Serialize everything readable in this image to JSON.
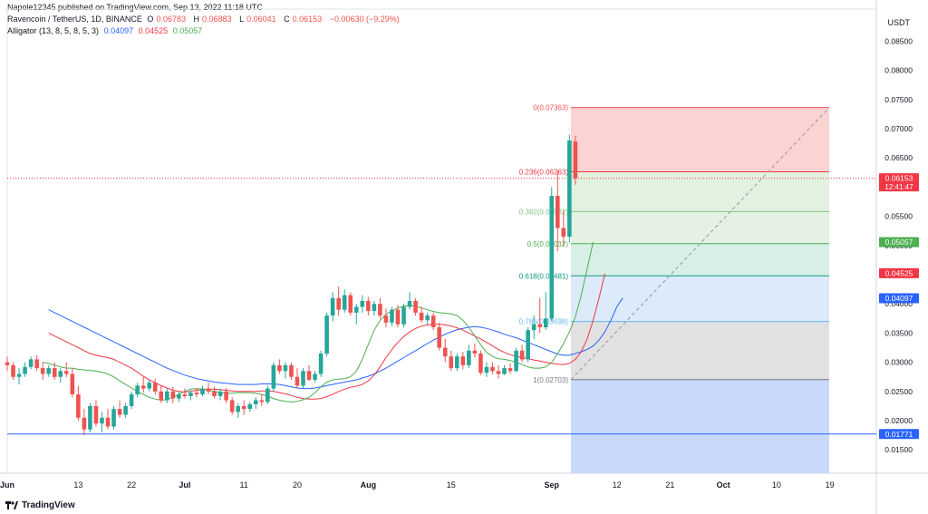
{
  "header": {
    "publisher": "Napole12345 published on TradingView.com, Sep 13, 2022 11:18 UTC",
    "symbol": "Ravencoin / TetherUS, 1D, BINANCE",
    "open_label": "O",
    "open": "0.06783",
    "high_label": "H",
    "high": "0.06883",
    "low_label": "L",
    "low": "0.06041",
    "close_label": "C",
    "close": "0.06153",
    "change": "−0.00630 (−9.29%)",
    "alligator_label": "Alligator (13, 8, 5, 8, 5, 3)",
    "jaw": "0.04097",
    "teeth": "0.04525",
    "lips": "0.05057"
  },
  "footer": {
    "brand": "TradingView"
  },
  "chart_data": {
    "type": "candlestick",
    "currency": "USDT",
    "ylim": [
      0.011,
      0.0905
    ],
    "y_ticks": [
      "0.08500",
      "0.08000",
      "0.07500",
      "0.07000",
      "0.06500",
      "0.06000",
      "0.05500",
      "0.05000",
      "0.04500",
      "0.04000",
      "0.03500",
      "0.03000",
      "0.02500",
      "0.02000",
      "0.01500"
    ],
    "x_ticks": [
      {
        "label": "Jun",
        "i": 0,
        "bold": true
      },
      {
        "label": "13",
        "i": 12
      },
      {
        "label": "22",
        "i": 21
      },
      {
        "label": "Jul",
        "i": 30,
        "bold": true
      },
      {
        "label": "11",
        "i": 40
      },
      {
        "label": "20",
        "i": 49
      },
      {
        "label": "Aug",
        "i": 61,
        "bold": true
      },
      {
        "label": "15",
        "i": 75
      },
      {
        "label": "Sep",
        "i": 92,
        "bold": true
      },
      {
        "label": "12",
        "i": 103
      },
      {
        "label": "21",
        "i": 112
      },
      {
        "label": "Oct",
        "i": 121,
        "bold": true
      },
      {
        "label": "10",
        "i": 130
      },
      {
        "label": "19",
        "i": 139
      }
    ],
    "ohlc": [
      [
        0.03,
        0.031,
        0.0285,
        0.0295
      ],
      [
        0.0295,
        0.03,
        0.027,
        0.0275
      ],
      [
        0.0275,
        0.029,
        0.0262,
        0.028
      ],
      [
        0.028,
        0.03,
        0.0275,
        0.0292
      ],
      [
        0.0292,
        0.031,
        0.0288,
        0.0305
      ],
      [
        0.0305,
        0.0312,
        0.0285,
        0.029
      ],
      [
        0.029,
        0.03,
        0.027,
        0.028
      ],
      [
        0.028,
        0.0295,
        0.0275,
        0.029
      ],
      [
        0.029,
        0.03,
        0.027,
        0.0275
      ],
      [
        0.0275,
        0.029,
        0.0265,
        0.0285
      ],
      [
        0.0285,
        0.03,
        0.0275,
        0.028
      ],
      [
        0.028,
        0.029,
        0.024,
        0.0245
      ],
      [
        0.0245,
        0.026,
        0.02,
        0.0205
      ],
      [
        0.0205,
        0.022,
        0.0175,
        0.0185
      ],
      [
        0.0185,
        0.023,
        0.018,
        0.0225
      ],
      [
        0.0225,
        0.0235,
        0.019,
        0.0195
      ],
      [
        0.0195,
        0.0215,
        0.018,
        0.0205
      ],
      [
        0.0205,
        0.022,
        0.0185,
        0.019
      ],
      [
        0.019,
        0.0225,
        0.0185,
        0.022
      ],
      [
        0.022,
        0.0235,
        0.0205,
        0.021
      ],
      [
        0.021,
        0.023,
        0.0205,
        0.0225
      ],
      [
        0.0225,
        0.025,
        0.022,
        0.0245
      ],
      [
        0.0245,
        0.0265,
        0.024,
        0.026
      ],
      [
        0.026,
        0.0275,
        0.0248,
        0.0255
      ],
      [
        0.0255,
        0.027,
        0.025,
        0.0265
      ],
      [
        0.0265,
        0.0272,
        0.0245,
        0.025
      ],
      [
        0.025,
        0.026,
        0.023,
        0.0235
      ],
      [
        0.0235,
        0.0255,
        0.023,
        0.025
      ],
      [
        0.025,
        0.0258,
        0.023,
        0.0238
      ],
      [
        0.0238,
        0.025,
        0.0232,
        0.0245
      ],
      [
        0.0245,
        0.0255,
        0.0238,
        0.0242
      ],
      [
        0.0242,
        0.0252,
        0.0235,
        0.0248
      ],
      [
        0.0248,
        0.0256,
        0.024,
        0.0245
      ],
      [
        0.0245,
        0.026,
        0.0242,
        0.0255
      ],
      [
        0.0255,
        0.0265,
        0.0245,
        0.025
      ],
      [
        0.025,
        0.0258,
        0.0238,
        0.0242
      ],
      [
        0.0242,
        0.0255,
        0.0235,
        0.025
      ],
      [
        0.025,
        0.0256,
        0.023,
        0.0235
      ],
      [
        0.0235,
        0.024,
        0.021,
        0.0215
      ],
      [
        0.0215,
        0.023,
        0.0205,
        0.0225
      ],
      [
        0.0225,
        0.0235,
        0.021,
        0.022
      ],
      [
        0.022,
        0.0232,
        0.0215,
        0.0228
      ],
      [
        0.0228,
        0.024,
        0.022,
        0.0235
      ],
      [
        0.0235,
        0.0245,
        0.0225,
        0.0232
      ],
      [
        0.0232,
        0.026,
        0.0228,
        0.0255
      ],
      [
        0.0255,
        0.03,
        0.025,
        0.0295
      ],
      [
        0.0295,
        0.0305,
        0.028,
        0.0285
      ],
      [
        0.0285,
        0.03,
        0.0272,
        0.0295
      ],
      [
        0.0295,
        0.03,
        0.027,
        0.0275
      ],
      [
        0.0275,
        0.029,
        0.0255,
        0.026
      ],
      [
        0.026,
        0.029,
        0.0255,
        0.0285
      ],
      [
        0.0285,
        0.0295,
        0.0268,
        0.027
      ],
      [
        0.027,
        0.0285,
        0.0265,
        0.028
      ],
      [
        0.028,
        0.032,
        0.0275,
        0.0315
      ],
      [
        0.0315,
        0.0385,
        0.031,
        0.038
      ],
      [
        0.038,
        0.042,
        0.037,
        0.041
      ],
      [
        0.041,
        0.043,
        0.038,
        0.039
      ],
      [
        0.039,
        0.0425,
        0.0385,
        0.0415
      ],
      [
        0.0415,
        0.042,
        0.038,
        0.0385
      ],
      [
        0.0385,
        0.04,
        0.0365,
        0.0395
      ],
      [
        0.0395,
        0.0415,
        0.0385,
        0.0405
      ],
      [
        0.0405,
        0.0412,
        0.038,
        0.0388
      ],
      [
        0.0388,
        0.0405,
        0.038,
        0.04
      ],
      [
        0.04,
        0.041,
        0.0375,
        0.038
      ],
      [
        0.038,
        0.0392,
        0.036,
        0.0368
      ],
      [
        0.0368,
        0.0395,
        0.0362,
        0.039
      ],
      [
        0.039,
        0.0398,
        0.036,
        0.0365
      ],
      [
        0.0365,
        0.04,
        0.036,
        0.0395
      ],
      [
        0.0395,
        0.042,
        0.039,
        0.0405
      ],
      [
        0.0405,
        0.041,
        0.038,
        0.0385
      ],
      [
        0.0385,
        0.0395,
        0.0368,
        0.0372
      ],
      [
        0.0372,
        0.0385,
        0.0365,
        0.038
      ],
      [
        0.038,
        0.0385,
        0.0355,
        0.036
      ],
      [
        0.036,
        0.0368,
        0.032,
        0.0325
      ],
      [
        0.0325,
        0.034,
        0.03,
        0.031
      ],
      [
        0.031,
        0.032,
        0.0285,
        0.029
      ],
      [
        0.029,
        0.0315,
        0.0285,
        0.031
      ],
      [
        0.031,
        0.0318,
        0.0288,
        0.0295
      ],
      [
        0.0295,
        0.033,
        0.029,
        0.032
      ],
      [
        0.032,
        0.0332,
        0.0308,
        0.0315
      ],
      [
        0.0315,
        0.032,
        0.0278,
        0.0282
      ],
      [
        0.0282,
        0.03,
        0.0275,
        0.0292
      ],
      [
        0.0292,
        0.03,
        0.028,
        0.0285
      ],
      [
        0.0285,
        0.0295,
        0.0272,
        0.028
      ],
      [
        0.028,
        0.0295,
        0.0278,
        0.029
      ],
      [
        0.029,
        0.0298,
        0.028,
        0.0285
      ],
      [
        0.0285,
        0.0325,
        0.0283,
        0.032
      ],
      [
        0.032,
        0.033,
        0.03,
        0.0305
      ],
      [
        0.0305,
        0.036,
        0.03,
        0.0355
      ],
      [
        0.0355,
        0.038,
        0.034,
        0.0365
      ],
      [
        0.0365,
        0.041,
        0.035,
        0.036
      ],
      [
        0.036,
        0.042,
        0.0355,
        0.0375
      ],
      [
        0.0375,
        0.06,
        0.037,
        0.0585
      ],
      [
        0.0585,
        0.0628,
        0.049,
        0.053
      ],
      [
        0.053,
        0.056,
        0.05,
        0.0515
      ],
      [
        0.0515,
        0.069,
        0.0505,
        0.068
      ],
      [
        0.0678,
        0.0688,
        0.0604,
        0.0615
      ]
    ],
    "alligator": {
      "jaw_color": "#2962ff",
      "teeth_color": "#f23645",
      "lips_color": "#4caf50",
      "jaw": [
        0.039,
        0.0385,
        0.038,
        0.0375,
        0.037,
        0.0365,
        0.036,
        0.0355,
        0.035,
        0.0345,
        0.034,
        0.0335,
        0.033,
        0.0325,
        0.032,
        0.0315,
        0.031,
        0.0305,
        0.03,
        0.0295,
        0.029,
        0.0286,
        0.0282,
        0.0278,
        0.0275,
        0.0272,
        0.027,
        0.0268,
        0.0266,
        0.0265,
        0.0264,
        0.0263,
        0.0262,
        0.0262,
        0.0262,
        0.0262,
        0.0263,
        0.0263,
        0.0263,
        0.0262,
        0.026,
        0.0258,
        0.0256,
        0.0255,
        0.0255,
        0.0256,
        0.0258,
        0.026,
        0.0262,
        0.0264,
        0.0266,
        0.0268,
        0.027,
        0.0273,
        0.0276,
        0.028,
        0.0285,
        0.029,
        0.0296,
        0.0302,
        0.0308,
        0.0314,
        0.032,
        0.0326,
        0.0332,
        0.0338,
        0.0343,
        0.0348,
        0.0352,
        0.0356,
        0.0358,
        0.036,
        0.0361,
        0.036,
        0.0358,
        0.0355,
        0.0352,
        0.0348,
        0.0345,
        0.0342,
        0.0338,
        0.0334,
        0.033,
        0.0326,
        0.0322,
        0.0318,
        0.0314,
        0.0312,
        0.0312,
        0.0315,
        0.0318,
        0.0322,
        0.0328,
        0.0338,
        0.0352,
        0.0372,
        0.0395,
        0.041
      ],
      "teeth": [
        0.035,
        0.0345,
        0.034,
        0.0335,
        0.033,
        0.0325,
        0.032,
        0.0315,
        0.0312,
        0.031,
        0.0308,
        0.0305,
        0.03,
        0.0295,
        0.029,
        0.0283,
        0.0276,
        0.027,
        0.0265,
        0.026,
        0.0256,
        0.0252,
        0.025,
        0.0249,
        0.025,
        0.0252,
        0.0253,
        0.0254,
        0.0254,
        0.0253,
        0.0252,
        0.0251,
        0.025,
        0.025,
        0.025,
        0.025,
        0.0251,
        0.0251,
        0.025,
        0.0248,
        0.0246,
        0.0243,
        0.024,
        0.0238,
        0.0237,
        0.0237,
        0.0238,
        0.0241,
        0.0245,
        0.025,
        0.0254,
        0.0257,
        0.0259,
        0.0262,
        0.0268,
        0.0278,
        0.0292,
        0.0308,
        0.0322,
        0.0334,
        0.0344,
        0.0352,
        0.0358,
        0.0362,
        0.0364,
        0.0365,
        0.0365,
        0.0364,
        0.0362,
        0.0359,
        0.0355,
        0.035,
        0.0345,
        0.034,
        0.0334,
        0.0328,
        0.0322,
        0.0317,
        0.0313,
        0.031,
        0.0308,
        0.0306,
        0.0304,
        0.0302,
        0.03,
        0.0298,
        0.0297,
        0.0296,
        0.0298,
        0.0305,
        0.0318,
        0.034,
        0.0372,
        0.041,
        0.0452
      ],
      "lips": [
        0.03,
        0.0298,
        0.0295,
        0.0292,
        0.029,
        0.029,
        0.0288,
        0.0287,
        0.0286,
        0.0285,
        0.0283,
        0.028,
        0.0275,
        0.0268,
        0.0262,
        0.0256,
        0.025,
        0.0245,
        0.024,
        0.0237,
        0.0235,
        0.0236,
        0.024,
        0.0245,
        0.025,
        0.0254,
        0.0255,
        0.0254,
        0.0252,
        0.025,
        0.0248,
        0.0247,
        0.0247,
        0.0248,
        0.0248,
        0.0248,
        0.0247,
        0.0245,
        0.0242,
        0.0238,
        0.0235,
        0.0233,
        0.0232,
        0.0233,
        0.0236,
        0.024,
        0.0248,
        0.0258,
        0.0266,
        0.027,
        0.0271,
        0.0272,
        0.0275,
        0.0285,
        0.0305,
        0.033,
        0.0355,
        0.0372,
        0.0382,
        0.0388,
        0.0393,
        0.0396,
        0.0397,
        0.0396,
        0.0393,
        0.039,
        0.0387,
        0.0385,
        0.0384,
        0.0383,
        0.038,
        0.0372,
        0.036,
        0.0345,
        0.033,
        0.0317,
        0.031,
        0.0306,
        0.0305,
        0.0303,
        0.03,
        0.0296,
        0.0292,
        0.029,
        0.029,
        0.0292,
        0.03,
        0.0315,
        0.0332,
        0.0352,
        0.0378,
        0.0415,
        0.046,
        0.0506
      ]
    },
    "fib": {
      "levels": [
        {
          "label": "0(0.07363)",
          "value": 0.07363,
          "color": "#ef5350",
          "fill": "#fbd3d3"
        },
        {
          "label": "0.236(0.06263)",
          "value": 0.06263,
          "color": "#f23645",
          "fill": "#e3f1e0"
        },
        {
          "label": "0.382(0.05582)",
          "value": 0.05582,
          "color": "#81c784",
          "fill": "#e5f2e3"
        },
        {
          "label": "0.5(0.05032)",
          "value": 0.05032,
          "color": "#4caf50",
          "fill": "#d8efe8"
        },
        {
          "label": "0.618(0.04481)",
          "value": 0.04481,
          "color": "#089981",
          "fill": "#dceaf9"
        },
        {
          "label": "0.786(0.03698)",
          "value": 0.03698,
          "color": "#64b5f6",
          "fill": "#e1e1e1"
        },
        {
          "label": "1(0.02703)",
          "value": 0.02703,
          "color": "#787b86",
          "fill": null
        }
      ],
      "extension_fill": "#c9d9fb"
    },
    "horizontal_line": {
      "value": 0.01771,
      "label": "0.01771",
      "color": "#2962ff"
    },
    "price_labels": [
      {
        "value": 0.06153,
        "label": "0.06153",
        "sub": "12:41:47",
        "color": "#f23645"
      },
      {
        "value": 0.05057,
        "label": "0.05057",
        "color": "#4caf50"
      },
      {
        "value": 0.04525,
        "label": "0.04525",
        "color": "#f23645"
      },
      {
        "value": 0.04097,
        "label": "0.04097",
        "color": "#2962ff"
      }
    ],
    "colors": {
      "up": "#26a69a",
      "down": "#ef5350"
    }
  }
}
